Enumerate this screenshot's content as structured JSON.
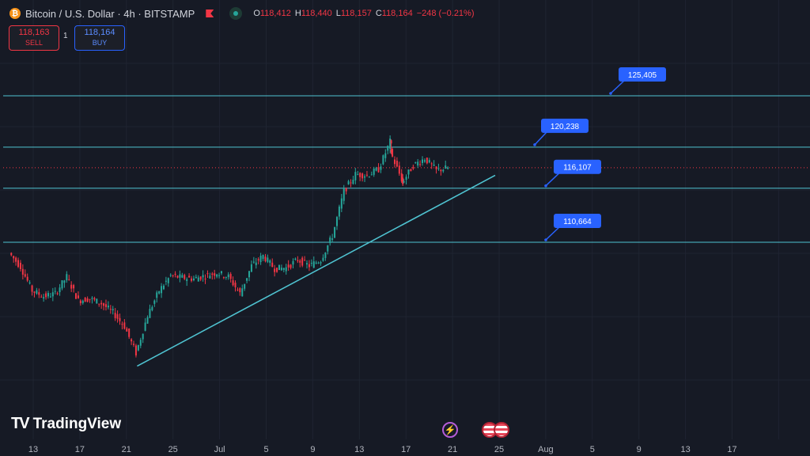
{
  "header": {
    "coin_symbol": "₿",
    "title": "Bitcoin / U.S. Dollar · 4h · BITSTAMP",
    "ohlc": [
      {
        "key": "O",
        "value": "118,412"
      },
      {
        "key": "H",
        "value": "118,440"
      },
      {
        "key": "L",
        "value": "118,157"
      },
      {
        "key": "C",
        "value": "118,164"
      }
    ],
    "change": "−248 (−0.21%)"
  },
  "trade": {
    "sell_price": "118,163",
    "sell_label": "SELL",
    "spread": "1",
    "buy_price": "118,164",
    "buy_label": "BUY"
  },
  "brand": {
    "logo_mark": "TV",
    "name": "TradingView"
  },
  "icons": [
    "bitcoin-icon",
    "flag-icon",
    "market-status-icon",
    "lightning-icon",
    "us-flag-icon"
  ],
  "colors": {
    "background": "#161a25",
    "up": "#26a69a",
    "down": "#f23645",
    "level_line": "#4fc3d1",
    "label_bg": "#2962ff"
  },
  "chart_data": {
    "type": "candlestick",
    "timeframe": "4h",
    "x_ticks": [
      "13",
      "17",
      "21",
      "25",
      "Jul",
      "5",
      "9",
      "13",
      "17",
      "21",
      "25",
      "Aug",
      "5",
      "9",
      "13",
      "17"
    ],
    "price_levels": [
      {
        "name": "125,405",
        "value": 125405
      },
      {
        "name": "120,238",
        "value": 120238
      },
      {
        "name": "116,107",
        "value": 116107
      },
      {
        "name": "110,664",
        "value": 110664
      }
    ],
    "current_price": 118164,
    "trendline": {
      "from": {
        "date": "Jun 22",
        "price": 98200
      },
      "to": {
        "date": "Jul 23",
        "price": 117400
      }
    },
    "close_path": [
      {
        "date": "Jun 11",
        "price": 109600
      },
      {
        "date": "Jun 12",
        "price": 108200
      },
      {
        "date": "Jun 13",
        "price": 105800
      },
      {
        "date": "Jun 14",
        "price": 105200
      },
      {
        "date": "Jun 15",
        "price": 105500
      },
      {
        "date": "Jun 16",
        "price": 107200
      },
      {
        "date": "Jun 17",
        "price": 104800
      },
      {
        "date": "Jun 18",
        "price": 105000
      },
      {
        "date": "Jun 19",
        "price": 104500
      },
      {
        "date": "Jun 20",
        "price": 103600
      },
      {
        "date": "Jun 21",
        "price": 102200
      },
      {
        "date": "Jun 22",
        "price": 99500
      },
      {
        "date": "Jun 23",
        "price": 103300
      },
      {
        "date": "Jun 24",
        "price": 105800
      },
      {
        "date": "Jun 25",
        "price": 107300
      },
      {
        "date": "Jun 26",
        "price": 107100
      },
      {
        "date": "Jun 27",
        "price": 107000
      },
      {
        "date": "Jun 28",
        "price": 107300
      },
      {
        "date": "Jun 29",
        "price": 107600
      },
      {
        "date": "Jun 30",
        "price": 107200
      },
      {
        "date": "Jul 1",
        "price": 105500
      },
      {
        "date": "Jul 2",
        "price": 108300
      },
      {
        "date": "Jul 3",
        "price": 109300
      },
      {
        "date": "Jul 4",
        "price": 108000
      },
      {
        "date": "Jul 5",
        "price": 108100
      },
      {
        "date": "Jul 6",
        "price": 108900
      },
      {
        "date": "Jul 7",
        "price": 108300
      },
      {
        "date": "Jul 8",
        "price": 108900
      },
      {
        "date": "Jul 9",
        "price": 111300
      },
      {
        "date": "Jul 10",
        "price": 115800
      },
      {
        "date": "Jul 11",
        "price": 117500
      },
      {
        "date": "Jul 12",
        "price": 117400
      },
      {
        "date": "Jul 13",
        "price": 118000
      },
      {
        "date": "Jul 14",
        "price": 120800
      },
      {
        "date": "Jul 14",
        "price": 119800
      },
      {
        "date": "Jul 15",
        "price": 117000
      },
      {
        "date": "Jul 15",
        "price": 116600
      },
      {
        "date": "Jul 16",
        "price": 118400
      },
      {
        "date": "Jul 17",
        "price": 119100
      },
      {
        "date": "Jul 18",
        "price": 117900
      },
      {
        "date": "Jul 19",
        "price": 118164
      }
    ]
  }
}
